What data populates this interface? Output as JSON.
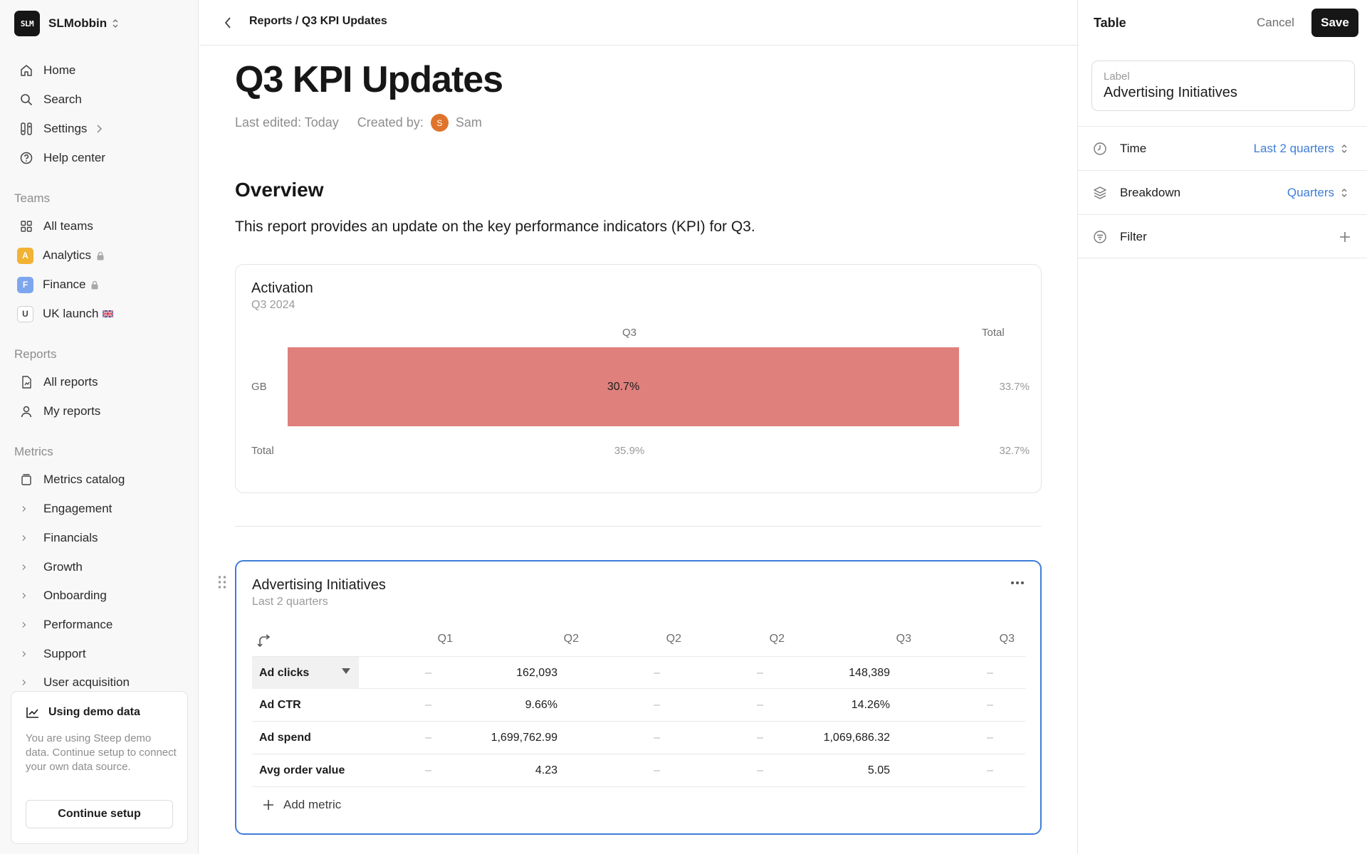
{
  "workspace": {
    "logo_text": "SLM",
    "name": "SLMobbin"
  },
  "nav": {
    "home": "Home",
    "search": "Search",
    "settings": "Settings",
    "help": "Help center"
  },
  "teams": {
    "title": "Teams",
    "all": "All teams",
    "items": [
      {
        "badge": "A",
        "label": "Analytics",
        "color": "#f2b233"
      },
      {
        "badge": "F",
        "label": "Finance",
        "color": "#7ea6ee"
      },
      {
        "badge": "U",
        "label": "UK launch"
      }
    ]
  },
  "reports_nav": {
    "title": "Reports",
    "all": "All reports",
    "mine": "My reports"
  },
  "metrics_nav": {
    "title": "Metrics",
    "catalog": "Metrics catalog",
    "groups": [
      "Engagement",
      "Financials",
      "Growth",
      "Onboarding",
      "Performance",
      "Support",
      "User acquisition"
    ]
  },
  "demo": {
    "title": "Using demo data",
    "text": "You are using Steep demo data. Continue setup to connect your own data source.",
    "button": "Continue setup"
  },
  "header": {
    "breadcrumb": "Reports / Q3 KPI Updates"
  },
  "page": {
    "title": "Q3 KPI Updates",
    "last_edited": "Last edited: Today",
    "created_by": "Created by:",
    "author_initial": "S",
    "author": "Sam",
    "overview_heading": "Overview",
    "overview_text": "This report provides an update on the key performance indicators (KPI) for Q3."
  },
  "activation": {
    "title": "Activation",
    "subtitle": "Q3 2024",
    "col_q3": "Q3",
    "col_total": "Total",
    "row_gb": "GB",
    "row_total": "Total",
    "gb_q3": "30.7%",
    "gb_total": "33.7%",
    "total_q3": "35.9%",
    "total_total": "32.7%"
  },
  "chart_data": {
    "type": "table",
    "title": "Activation",
    "subtitle": "Q3 2024",
    "columns": [
      "Q3",
      "Total"
    ],
    "rows": [
      {
        "label": "GB",
        "values": [
          30.7,
          33.7
        ]
      },
      {
        "label": "Total",
        "values": [
          35.9,
          32.7
        ]
      }
    ],
    "unit": "%",
    "highlight_color": "#df807c"
  },
  "advertising": {
    "title": "Advertising Initiatives",
    "subtitle": "Last 2 quarters",
    "columns": [
      "Q1",
      "Q2",
      "Q2",
      "Q2",
      "Q3",
      "Q3"
    ],
    "rows": [
      {
        "label": "Ad clicks",
        "values": [
          "–",
          "162,093",
          "–",
          "–",
          "148,389",
          "–"
        ]
      },
      {
        "label": "Ad CTR",
        "values": [
          "–",
          "9.66%",
          "–",
          "–",
          "14.26%",
          "–"
        ]
      },
      {
        "label": "Ad spend",
        "values": [
          "–",
          "1,699,762.99",
          "–",
          "–",
          "1,069,686.32",
          "–"
        ]
      },
      {
        "label": "Avg order value",
        "values": [
          "–",
          "4.23",
          "–",
          "–",
          "5.05",
          "–"
        ]
      }
    ],
    "add_metric": "Add metric"
  },
  "panel": {
    "title": "Table",
    "cancel": "Cancel",
    "save": "Save",
    "label_caption": "Label",
    "label_value": "Advertising Initiatives",
    "time_label": "Time",
    "time_value": "Last 2 quarters",
    "breakdown_label": "Breakdown",
    "breakdown_value": "Quarters",
    "filter_label": "Filter"
  }
}
